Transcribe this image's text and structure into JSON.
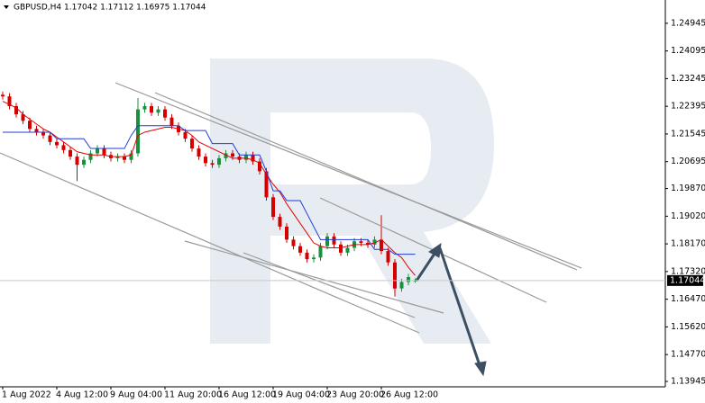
{
  "chart_data": {
    "type": "candlestick",
    "title": "GBPUSD,H4  1.17042 1.17112 1.16975 1.17044",
    "categories": [
      "1 Aug 2022",
      null,
      null,
      null,
      null,
      null,
      null,
      null,
      "4 Aug 12:00",
      null,
      null,
      null,
      null,
      null,
      null,
      null,
      "9 Aug 04:00",
      null,
      null,
      null,
      null,
      null,
      null,
      null,
      "11 Aug 20:00",
      null,
      null,
      null,
      null,
      null,
      null,
      null,
      "16 Aug 12:00",
      null,
      null,
      null,
      null,
      null,
      null,
      null,
      "19 Aug 04:00",
      null,
      null,
      null,
      null,
      null,
      null,
      null,
      "23 Aug 20:00",
      null,
      null,
      null,
      null,
      null,
      null,
      null,
      "26 Aug 12:00",
      null,
      null,
      null,
      null,
      null
    ],
    "open": [
      1.2275,
      1.227,
      1.224,
      1.2215,
      1.2195,
      1.217,
      1.216,
      1.215,
      1.213,
      1.212,
      1.2105,
      1.2085,
      1.206,
      1.2075,
      1.2095,
      1.211,
      1.209,
      1.208,
      1.2085,
      1.2075,
      1.2095,
      1.223,
      1.224,
      1.222,
      1.223,
      1.2205,
      1.218,
      1.216,
      1.214,
      1.211,
      1.2085,
      1.2065,
      1.206,
      1.208,
      1.2095,
      1.2085,
      1.2075,
      1.209,
      1.207,
      1.204,
      1.196,
      1.19,
      1.187,
      1.183,
      1.181,
      1.179,
      1.177,
      1.1775,
      1.181,
      1.184,
      1.1815,
      1.179,
      1.1805,
      1.1825,
      1.182,
      1.1815,
      1.183,
      1.1795,
      1.176,
      1.168,
      1.17,
      1.17042
    ],
    "high": [
      1.2285,
      1.228,
      1.225,
      1.2225,
      1.2205,
      1.218,
      1.217,
      1.216,
      1.214,
      1.213,
      1.2115,
      1.2095,
      1.2085,
      1.2105,
      1.212,
      1.212,
      1.21,
      1.2095,
      1.2095,
      1.2105,
      1.2265,
      1.225,
      1.225,
      1.224,
      1.224,
      1.2215,
      1.219,
      1.217,
      1.215,
      1.212,
      1.2095,
      1.2075,
      1.209,
      1.2105,
      1.2105,
      1.2095,
      1.21,
      1.21,
      1.208,
      1.205,
      1.197,
      1.191,
      1.188,
      1.184,
      1.182,
      1.18,
      1.1785,
      1.182,
      1.185,
      1.185,
      1.1825,
      1.1815,
      1.1835,
      1.1835,
      1.183,
      1.184,
      1.1905,
      1.1805,
      1.177,
      1.171,
      1.1725,
      1.17112
    ],
    "low": [
      1.226,
      1.223,
      1.2205,
      1.2185,
      1.216,
      1.215,
      1.214,
      1.212,
      1.211,
      1.2095,
      1.2075,
      1.201,
      1.205,
      1.2065,
      1.2085,
      1.208,
      1.207,
      1.207,
      1.2065,
      1.2065,
      1.2085,
      1.222,
      1.221,
      1.221,
      1.2195,
      1.217,
      1.215,
      1.213,
      1.21,
      1.2075,
      1.2055,
      1.205,
      1.205,
      1.207,
      1.2075,
      1.2065,
      1.2065,
      1.206,
      1.203,
      1.195,
      1.189,
      1.186,
      1.182,
      1.18,
      1.178,
      1.176,
      1.176,
      1.1765,
      1.18,
      1.1805,
      1.178,
      1.178,
      1.1795,
      1.181,
      1.1805,
      1.1805,
      1.1785,
      1.175,
      1.1655,
      1.167,
      1.169,
      1.16975
    ],
    "close": [
      1.227,
      1.224,
      1.2215,
      1.2195,
      1.217,
      1.216,
      1.215,
      1.213,
      1.212,
      1.2105,
      1.2085,
      1.206,
      1.2075,
      1.2095,
      1.211,
      1.209,
      1.208,
      1.2085,
      1.2075,
      1.2095,
      1.223,
      1.224,
      1.222,
      1.223,
      1.2205,
      1.218,
      1.216,
      1.214,
      1.211,
      1.2085,
      1.2065,
      1.206,
      1.208,
      1.2095,
      1.2085,
      1.2075,
      1.209,
      1.207,
      1.204,
      1.196,
      1.19,
      1.187,
      1.183,
      1.181,
      1.179,
      1.177,
      1.1775,
      1.181,
      1.184,
      1.1815,
      1.179,
      1.1805,
      1.1825,
      1.182,
      1.1815,
      1.183,
      1.1795,
      1.176,
      1.168,
      1.17,
      1.1715,
      1.17044
    ],
    "up_color": "#1a8f3c",
    "down_color": "#d40000",
    "series": [
      {
        "color": "#e60000",
        "values": [
          1.2255,
          1.2245,
          1.2235,
          1.2215,
          1.22,
          1.2185,
          1.217,
          1.216,
          1.2145,
          1.213,
          1.2115,
          1.21,
          1.2095,
          1.209,
          1.209,
          1.209,
          1.2085,
          1.2085,
          1.2085,
          1.209,
          1.215,
          1.216,
          1.2165,
          1.217,
          1.2175,
          1.2175,
          1.217,
          1.2165,
          1.215,
          1.213,
          1.212,
          1.211,
          1.21,
          1.209,
          1.208,
          1.208,
          1.208,
          1.2075,
          1.2065,
          1.203,
          1.2,
          1.1975,
          1.194,
          1.191,
          1.188,
          1.185,
          1.182,
          1.181,
          1.1805,
          1.1805,
          1.1805,
          1.181,
          1.1815,
          1.1815,
          1.1815,
          1.182,
          1.183,
          1.181,
          1.179,
          1.1775,
          1.1745,
          1.172
        ]
      },
      {
        "color": "#1f3dd6",
        "values": [
          1.216,
          1.216,
          1.216,
          1.216,
          1.216,
          1.216,
          1.216,
          1.216,
          1.214,
          1.214,
          1.214,
          1.214,
          1.214,
          1.211,
          1.211,
          1.211,
          1.211,
          1.211,
          1.211,
          1.215,
          1.218,
          1.218,
          1.218,
          1.218,
          1.218,
          1.218,
          1.218,
          1.2165,
          1.2165,
          1.2165,
          1.2165,
          1.2125,
          1.2125,
          1.2125,
          1.2125,
          1.209,
          1.209,
          1.209,
          1.209,
          1.204,
          1.198,
          1.198,
          1.195,
          1.195,
          1.195,
          1.191,
          1.187,
          1.183,
          1.183,
          1.183,
          1.183,
          1.183,
          1.183,
          1.183,
          1.183,
          1.18,
          1.18,
          1.18,
          1.1785,
          1.1785,
          1.1785,
          1.1785
        ]
      }
    ],
    "ylim": [
      1.1378,
      1.2566
    ],
    "yticks": [
      1.24945,
      1.24095,
      1.23245,
      1.22395,
      1.21545,
      1.20695,
      {
        "value": 1.1987,
        "label": "1.19870"
      },
      {
        "value": 1.1902,
        "label": "1.19020"
      },
      {
        "value": 1.1817,
        "label": "1.18170"
      },
      {
        "value": 1.1732,
        "label": "1.17320"
      },
      {
        "value": 1.1647,
        "label": "1.16470"
      },
      {
        "value": 1.1562,
        "label": "1.15620"
      },
      {
        "value": 1.1477,
        "label": "1.14770"
      },
      1.13945
    ]
  }
}
